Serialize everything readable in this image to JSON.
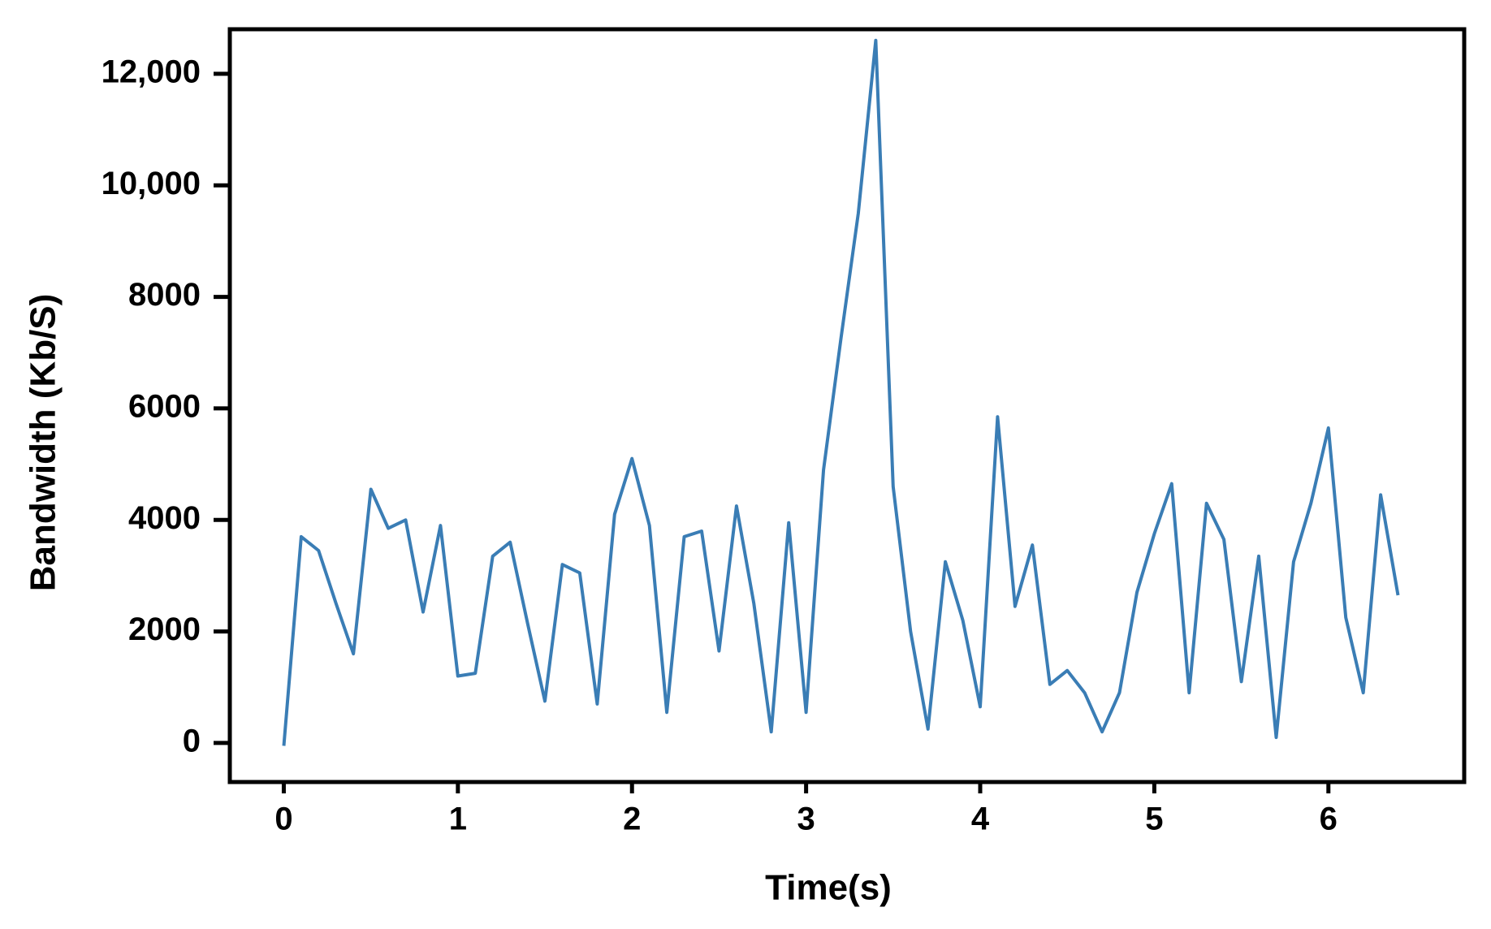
{
  "chart_data": {
    "type": "line",
    "x_label": "Time(s)",
    "y_label": "Bandwidth (Kb/S)",
    "x": [
      0,
      0.1,
      0.2,
      0.3,
      0.4,
      0.5,
      0.6,
      0.7,
      0.8,
      0.9,
      1.0,
      1.1,
      1.2,
      1.3,
      1.4,
      1.5,
      1.6,
      1.7,
      1.8,
      1.9,
      2.0,
      2.1,
      2.2,
      2.3,
      2.4,
      2.5,
      2.6,
      2.7,
      2.8,
      2.9,
      3.0,
      3.1,
      3.2,
      3.3,
      3.4,
      3.5,
      3.6,
      3.7,
      3.8,
      3.9,
      4.0,
      4.1,
      4.2,
      4.3,
      4.4,
      4.5,
      4.6,
      4.7,
      4.8,
      4.9,
      5.0,
      5.1,
      5.2,
      5.3,
      5.4,
      5.5,
      5.6,
      5.7,
      5.8,
      5.9,
      6.0,
      6.1,
      6.2,
      6.3,
      6.4
    ],
    "series": [
      {
        "color": "#3a7db5",
        "values": [
          -50,
          3700,
          3450,
          2500,
          1600,
          4550,
          3850,
          4000,
          2350,
          3900,
          1200,
          1250,
          3350,
          3600,
          2150,
          750,
          3200,
          3050,
          700,
          4100,
          5100,
          3900,
          550,
          3700,
          3800,
          1650,
          4250,
          2500,
          200,
          3950,
          550,
          4900,
          7250,
          9500,
          12600,
          4600,
          2000,
          250,
          3250,
          2200,
          650,
          5850,
          2450,
          3550,
          1050,
          1300,
          900,
          200,
          900,
          2700,
          3750,
          4650,
          900,
          4300,
          3650,
          1100,
          3350,
          100,
          3250,
          4300,
          5650,
          2250,
          900,
          4450,
          2650
        ]
      }
    ],
    "xlim": [
      -0.31,
      6.78
    ],
    "ylim": [
      -700,
      12800
    ],
    "xticks": [
      0,
      1,
      2,
      3,
      4,
      5,
      6
    ],
    "yticks": [
      0,
      2000,
      4000,
      6000,
      8000,
      {
        "value": 10000,
        "label": "10,000"
      },
      {
        "value": 12000,
        "label": "12,000"
      }
    ]
  }
}
